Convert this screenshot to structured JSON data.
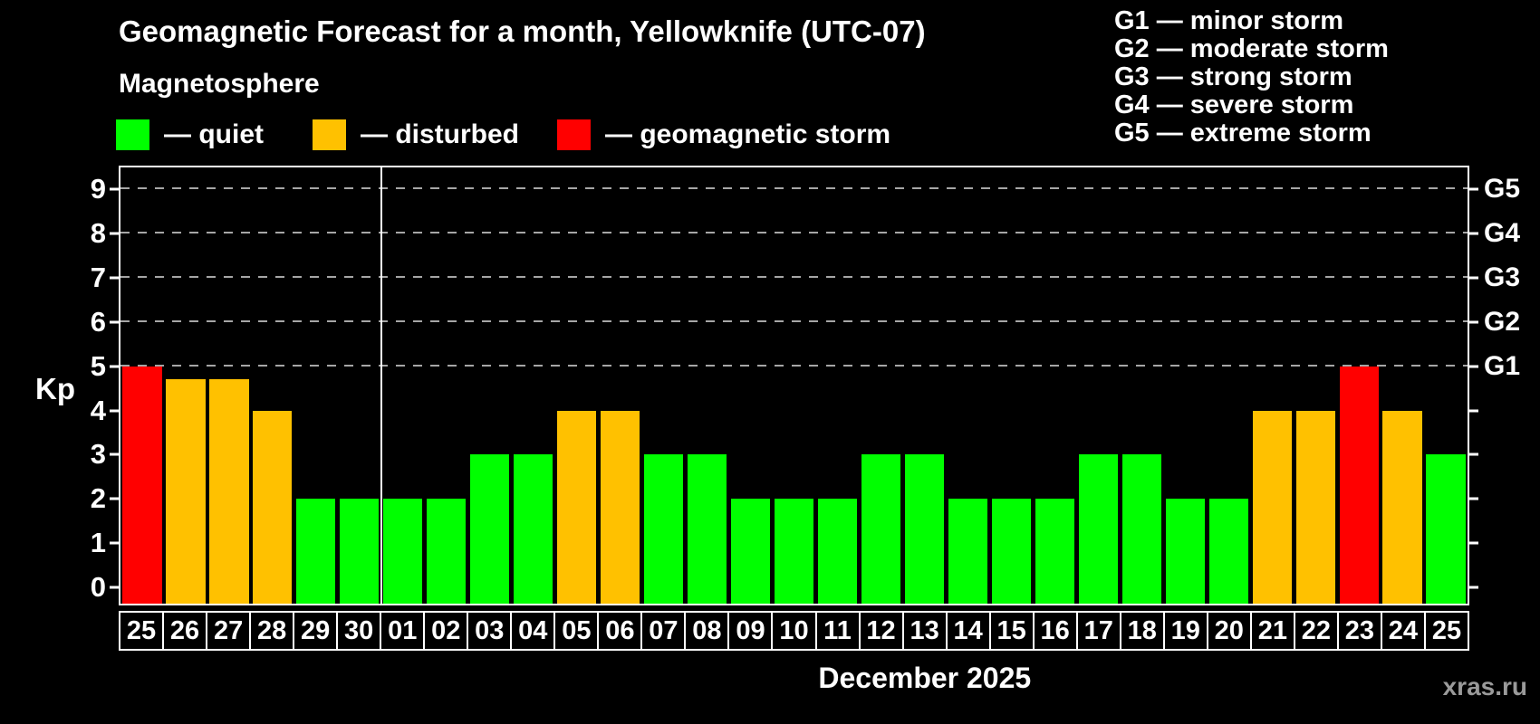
{
  "title": "Geomagnetic Forecast for a month, Yellowknife (UTC-07)",
  "subtitle": "Magnetosphere",
  "legend": {
    "items": [
      {
        "key": "quiet",
        "label": "— quiet",
        "color": "#00ff00"
      },
      {
        "key": "disturbed",
        "label": "— disturbed",
        "color": "#ffc100"
      },
      {
        "key": "storm",
        "label": "— geomagnetic storm",
        "color": "#ff0000"
      }
    ]
  },
  "g_legend": {
    "lines": [
      "G1 — minor storm",
      "G2 — moderate storm",
      "G3 — strong storm",
      "G4 — severe storm",
      "G5 — extreme storm"
    ]
  },
  "chart_data": {
    "type": "bar",
    "title": "Geomagnetic Forecast for a month, Yellowknife (UTC-07)",
    "ylabel": "Kp",
    "xlabel": "December 2025",
    "ylim": [
      -0.37,
      9.5
    ],
    "yticks": [
      0,
      1,
      2,
      3,
      4,
      5,
      6,
      7,
      8,
      9
    ],
    "gridline_levels": [
      5,
      6,
      7,
      8,
      9
    ],
    "right_axis": [
      {
        "kp": 5,
        "label": "G1"
      },
      {
        "kp": 6,
        "label": "G2"
      },
      {
        "kp": 7,
        "label": "G3"
      },
      {
        "kp": 8,
        "label": "G4"
      },
      {
        "kp": 9,
        "label": "G5"
      }
    ],
    "grid": "dashed-horizontal-at-storm-levels",
    "legend_position": "top",
    "month_divider_after": 6,
    "categories": [
      "25",
      "26",
      "27",
      "28",
      "29",
      "30",
      "01",
      "02",
      "03",
      "04",
      "05",
      "06",
      "07",
      "08",
      "09",
      "10",
      "11",
      "12",
      "13",
      "14",
      "15",
      "16",
      "17",
      "18",
      "19",
      "20",
      "21",
      "22",
      "23",
      "24",
      "25"
    ],
    "values": [
      5,
      4.7,
      4.7,
      4,
      2,
      2,
      2,
      2,
      3,
      3,
      4,
      4,
      3,
      3,
      2,
      2,
      2,
      3,
      3,
      2,
      2,
      2,
      3,
      3,
      2,
      2,
      4,
      4,
      5,
      4,
      3
    ],
    "statuses": [
      "storm",
      "disturbed",
      "disturbed",
      "disturbed",
      "quiet",
      "quiet",
      "quiet",
      "quiet",
      "quiet",
      "quiet",
      "disturbed",
      "disturbed",
      "quiet",
      "quiet",
      "quiet",
      "quiet",
      "quiet",
      "quiet",
      "quiet",
      "quiet",
      "quiet",
      "quiet",
      "quiet",
      "quiet",
      "quiet",
      "quiet",
      "disturbed",
      "disturbed",
      "storm",
      "disturbed",
      "quiet"
    ],
    "colors": {
      "quiet": "#00ff00",
      "disturbed": "#ffc100",
      "storm": "#ff0000"
    }
  },
  "footer": {
    "caption": "December 2025",
    "watermark": "xras.ru"
  }
}
